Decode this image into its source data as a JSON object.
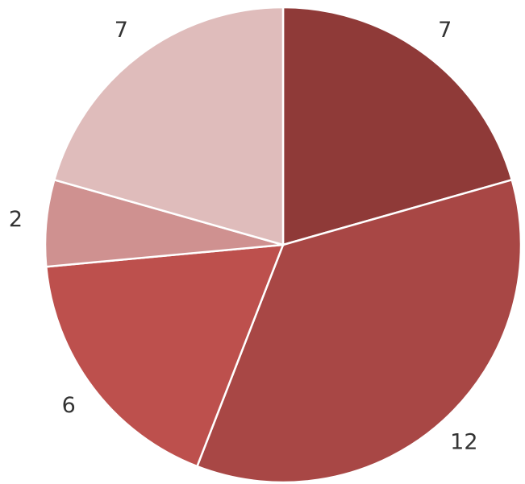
{
  "chart_data": {
    "type": "pie",
    "values": [
      7,
      12,
      6,
      2,
      7
    ],
    "data_labels": [
      "7",
      "12",
      "6",
      "2",
      "7"
    ],
    "colors": [
      "#8f3a38",
      "#a84745",
      "#bd504d",
      "#cf9190",
      "#dfbcbb"
    ],
    "start_angle_deg": 0,
    "direction": "clockwise",
    "title": "",
    "legend": "none"
  }
}
